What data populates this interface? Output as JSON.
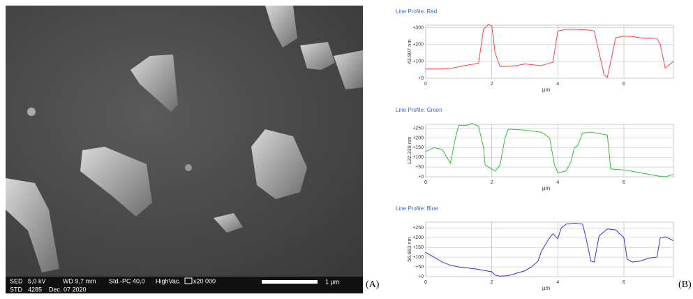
{
  "sem_image": {
    "info_row1": [
      "SED",
      "5,0 kV",
      "WD 9,7 mm",
      "Std.-PC 40,0",
      "HighVac.",
      "x20 000"
    ],
    "info_row2": [
      "STD",
      "4285",
      "Dec. 07 2020"
    ],
    "scale_label": "1 µm"
  },
  "panel_labels": [
    "(A)",
    "(B)"
  ],
  "chart_data": [
    {
      "type": "line",
      "title": "Line Profile: Red",
      "ylabel": "43.807 nm",
      "xlabel": "µm",
      "color": "#ff4040",
      "x": [
        0,
        0.25,
        0.5,
        0.75,
        1,
        1.25,
        1.5,
        1.6,
        1.75,
        1.9,
        2,
        2.1,
        2.25,
        2.5,
        2.75,
        3,
        3.25,
        3.5,
        3.75,
        3.85,
        4,
        4.25,
        4.5,
        4.75,
        5,
        5.1,
        5.25,
        5.4,
        5.5,
        5.6,
        5.75,
        6,
        6.25,
        6.5,
        6.75,
        7,
        7.1,
        7.25,
        7.5
      ],
      "values": [
        55,
        55,
        55,
        58,
        68,
        78,
        85,
        90,
        290,
        320,
        310,
        150,
        70,
        70,
        75,
        85,
        80,
        75,
        90,
        95,
        280,
        290,
        290,
        288,
        285,
        280,
        150,
        20,
        5,
        100,
        240,
        250,
        248,
        240,
        238,
        235,
        200,
        60,
        100
      ],
      "xlim": [
        0,
        7.5
      ],
      "ylim": [
        0,
        315
      ],
      "xticks": [
        0,
        2,
        4,
        6
      ],
      "yticks": [
        {
          "value": 0,
          "label": "+0"
        },
        {
          "value": 100,
          "label": "+100"
        },
        {
          "value": 200,
          "label": "+200"
        },
        {
          "value": 300,
          "label": "+300"
        }
      ],
      "grid": true
    },
    {
      "type": "line",
      "title": "Line Profile: Green",
      "ylabel": "122.339 nm",
      "xlabel": "µm",
      "color": "#30c030",
      "x": [
        0,
        0.25,
        0.5,
        0.75,
        0.9,
        1,
        1.25,
        1.4,
        1.6,
        1.75,
        1.8,
        2,
        2.1,
        2.25,
        2.4,
        2.5,
        3,
        3.5,
        3.75,
        3.9,
        4,
        4.25,
        4.4,
        4.5,
        4.6,
        4.75,
        5,
        5.5,
        5.6,
        6,
        6.5,
        7,
        7.25,
        7.5
      ],
      "values": [
        130,
        150,
        140,
        70,
        200,
        265,
        265,
        275,
        260,
        150,
        60,
        40,
        30,
        60,
        200,
        245,
        240,
        230,
        200,
        60,
        20,
        30,
        80,
        150,
        160,
        225,
        230,
        215,
        40,
        35,
        20,
        5,
        0,
        12
      ],
      "xlim": [
        0,
        7.5
      ],
      "ylim": [
        0,
        270
      ],
      "xticks": [
        0,
        2,
        4,
        6
      ],
      "yticks": [
        {
          "value": 0,
          "label": "+0"
        },
        {
          "value": 50,
          "label": "+50"
        },
        {
          "value": 100,
          "label": "+100"
        },
        {
          "value": 150,
          "label": "+150"
        },
        {
          "value": 200,
          "label": "+200"
        },
        {
          "value": 250,
          "label": "+250"
        }
      ],
      "grid": true
    },
    {
      "type": "line",
      "title": "Line Profile: Blue",
      "ylabel": "56.663 nm",
      "xlabel": "µm",
      "color": "#3030e0",
      "x": [
        0,
        0.25,
        0.5,
        0.75,
        1,
        1.5,
        2,
        2.1,
        2.25,
        2.5,
        3,
        3.2,
        3.4,
        3.5,
        3.75,
        3.85,
        4,
        4.1,
        4.25,
        4.5,
        4.75,
        4.85,
        5,
        5.1,
        5.25,
        5.5,
        5.75,
        6,
        6.1,
        6.25,
        6.5,
        6.75,
        7,
        7.1,
        7.25,
        7.5
      ],
      "values": [
        125,
        100,
        75,
        58,
        50,
        40,
        25,
        8,
        3,
        5,
        30,
        50,
        80,
        130,
        200,
        220,
        195,
        250,
        270,
        275,
        270,
        200,
        80,
        75,
        210,
        245,
        240,
        200,
        90,
        75,
        80,
        95,
        100,
        200,
        205,
        185
      ],
      "xlim": [
        0,
        7.5
      ],
      "ylim": [
        0,
        280
      ],
      "xticks": [
        0,
        2,
        4,
        6
      ],
      "yticks": [
        {
          "value": 0,
          "label": "+0"
        },
        {
          "value": 50,
          "label": "+50"
        },
        {
          "value": 100,
          "label": "+100"
        },
        {
          "value": 150,
          "label": "+150"
        },
        {
          "value": 200,
          "label": "+200"
        },
        {
          "value": 250,
          "label": "+250"
        }
      ],
      "grid": true
    }
  ]
}
